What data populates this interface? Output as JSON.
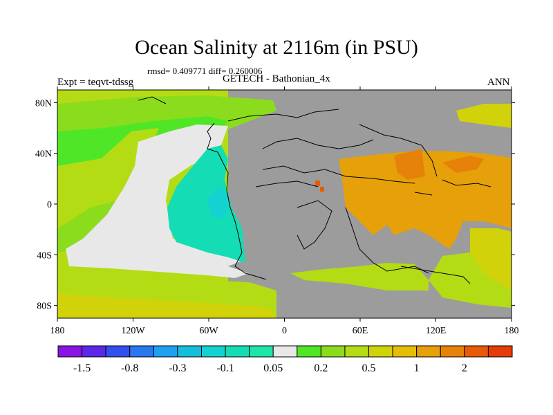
{
  "title": "Ocean Salinity at 2116m (in PSU)",
  "stats": "rmsd= 0.409771 diff= 0.260006",
  "subtitle": "GETECH - Bathonian_4x",
  "experiment_label": "Expt = teqvt-tdssg",
  "season": "ANN",
  "chart_data": {
    "type": "heatmap",
    "title": "Ocean Salinity at 2116m (in PSU)",
    "xlabel": "",
    "ylabel": "",
    "xlim": [
      -180,
      180
    ],
    "ylim": [
      -90,
      90
    ],
    "x_ticks": [
      {
        "value": -180,
        "label": "180"
      },
      {
        "value": -120,
        "label": "120W"
      },
      {
        "value": -60,
        "label": "60W"
      },
      {
        "value": 0,
        "label": "0"
      },
      {
        "value": 60,
        "label": "60E"
      },
      {
        "value": 120,
        "label": "120E"
      },
      {
        "value": 180,
        "label": "180"
      }
    ],
    "y_ticks": [
      {
        "value": 80,
        "label": "80N"
      },
      {
        "value": 40,
        "label": "40N"
      },
      {
        "value": 0,
        "label": "0"
      },
      {
        "value": -40,
        "label": "40S"
      },
      {
        "value": -80,
        "label": "80S"
      }
    ],
    "land_color": "#9c9c9c",
    "colorbar": {
      "colors": [
        "#8a14e6",
        "#5a28e6",
        "#3250f0",
        "#2878f0",
        "#1ea0f0",
        "#14bedc",
        "#14d2d2",
        "#14dcb4",
        "#1ee6aa",
        "#e8e8e8",
        "#50e628",
        "#8cdc1e",
        "#b4dc14",
        "#d2d20a",
        "#e6be0a",
        "#e6a00a",
        "#e6820a",
        "#e65a0a",
        "#e63c0a"
      ],
      "labels": [
        {
          "boundary": 1,
          "text": "-1.5"
        },
        {
          "boundary": 3,
          "text": "-0.8"
        },
        {
          "boundary": 5,
          "text": "-0.3"
        },
        {
          "boundary": 7,
          "text": "-0.1"
        },
        {
          "boundary": 9,
          "text": "0.05"
        },
        {
          "boundary": 11,
          "text": "0.2"
        },
        {
          "boundary": 13,
          "text": "0.5"
        },
        {
          "boundary": 15,
          "text": "1"
        },
        {
          "boundary": 17,
          "text": "2"
        }
      ]
    }
  }
}
